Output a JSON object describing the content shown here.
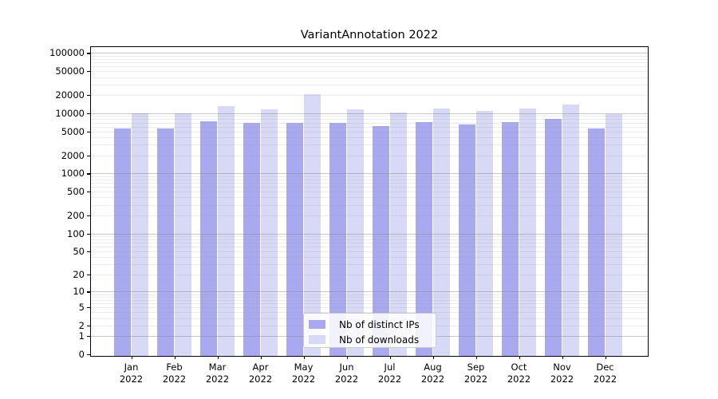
{
  "figure": {
    "background": "#ffffff"
  },
  "chart_data": {
    "type": "bar",
    "title": "VariantAnnotation 2022",
    "year_label": "2022",
    "categories": [
      "Jan",
      "Feb",
      "Mar",
      "Apr",
      "May",
      "Jun",
      "Jul",
      "Aug",
      "Sep",
      "Oct",
      "Nov",
      "Dec"
    ],
    "series": [
      {
        "name": "Nb of distinct IPs",
        "color": "#a9a9f0",
        "values": [
          5650,
          5650,
          7400,
          6900,
          7000,
          7000,
          6200,
          7200,
          6450,
          7200,
          8050,
          5600
        ]
      },
      {
        "name": "Nb of downloads",
        "color": "#d8d8f7",
        "values": [
          9900,
          10000,
          13000,
          11800,
          20600,
          11500,
          10200,
          12000,
          10900,
          12000,
          14000,
          9800
        ]
      }
    ],
    "xlabel": "",
    "ylabel": "",
    "yscale": "log1p",
    "ylim": [
      0,
      100000
    ],
    "yticks": [
      0,
      1,
      2,
      5,
      10,
      20,
      50,
      100,
      200,
      500,
      1000,
      2000,
      5000,
      10000,
      20000,
      50000,
      100000
    ],
    "grid": "horizontal, major and minor",
    "legend_position": "lower center",
    "colors": {
      "major_gridline": "rgba(130,130,130,0.45)",
      "minor_gridline": "rgba(150,150,150,0.18)",
      "axis": "#000000"
    }
  }
}
